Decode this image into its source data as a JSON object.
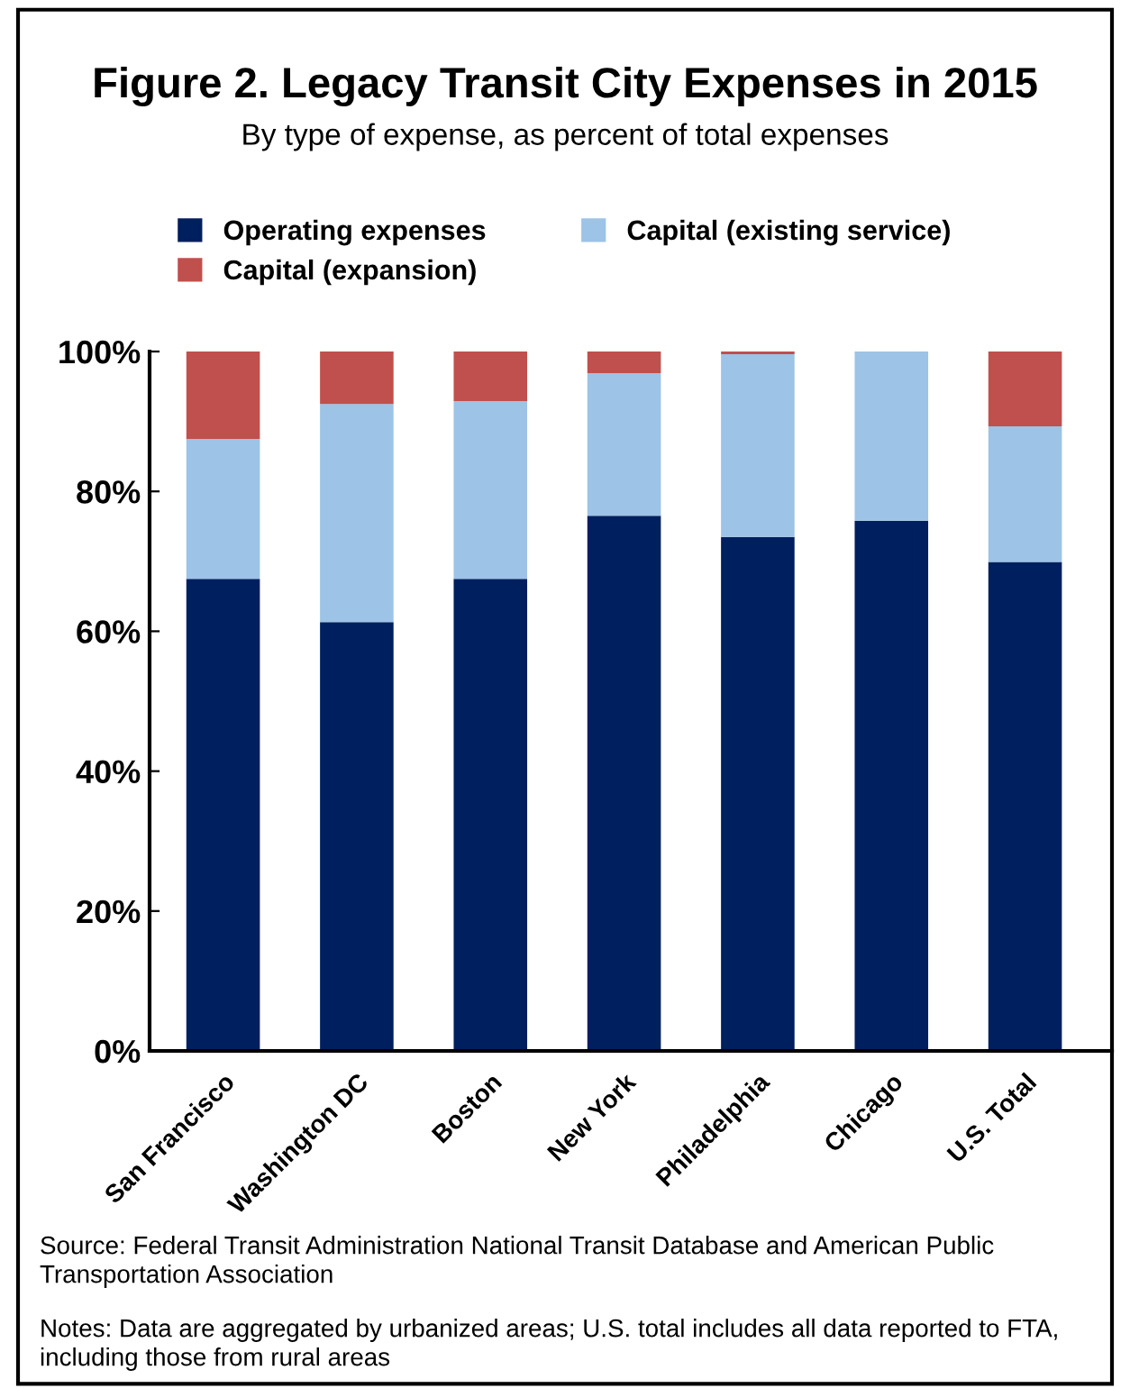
{
  "chart_data": {
    "type": "bar",
    "title": "Figure 2. Legacy Transit City Expenses in 2015",
    "subtitle": "By type of expense, as percent of total expenses",
    "categories": [
      "San Francisco",
      "Washington DC",
      "Boston",
      "New York",
      "Philadelphia",
      "Chicago",
      "U.S. Total"
    ],
    "stacked": true,
    "series": [
      {
        "name": "Operating expenses",
        "color": "#001f5f",
        "values": [
          67.5,
          61.3,
          67.5,
          76.5,
          73.5,
          75.8,
          69.9
        ]
      },
      {
        "name": "Capital (existing service)",
        "color": "#9dc3e6",
        "values": [
          20.0,
          31.2,
          25.4,
          20.4,
          26.1,
          24.2,
          19.4
        ]
      },
      {
        "name": "Capital (expansion)",
        "color": "#c0504d",
        "values": [
          12.5,
          7.5,
          7.1,
          3.1,
          0.4,
          0,
          10.7
        ]
      }
    ],
    "ylim": [
      0,
      100
    ],
    "yticks": [
      {
        "value": 0,
        "label": "0%"
      },
      {
        "value": 20,
        "label": "20%"
      },
      {
        "value": 40,
        "label": "40%"
      },
      {
        "value": 60,
        "label": "60%"
      },
      {
        "value": 80,
        "label": "80%"
      },
      {
        "value": 100,
        "label": "100%"
      }
    ],
    "grid": false,
    "legend": "top",
    "annotations": [
      "Source: Federal Transit Administration National Transit Database and American Public Transportation Association",
      "Notes: Data are aggregated by urbanized areas; U.S. total includes all data reported to FTA, including those from rural areas"
    ]
  }
}
